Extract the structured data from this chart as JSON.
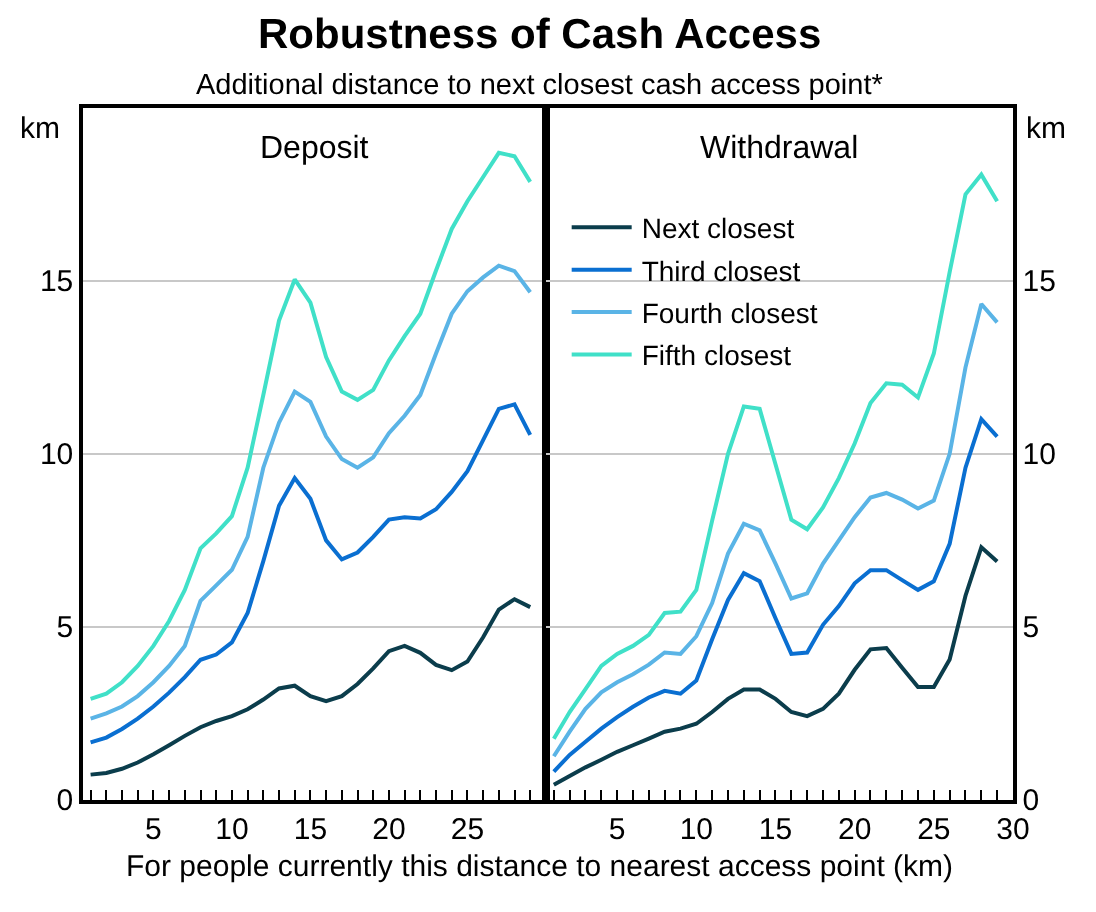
{
  "chart_data": [
    {
      "type": "line",
      "title": "Robustness of Cash Access",
      "subtitle": "Additional distance to next closest cash access point*",
      "xlabel": "For people currently this distance to nearest access point (km)",
      "ylabel": "km",
      "annotations": [
        "Deposit"
      ],
      "x": [
        1,
        2,
        3,
        4,
        5,
        6,
        7,
        8,
        9,
        10,
        11,
        12,
        13,
        14,
        15,
        16,
        17,
        18,
        19,
        20,
        21,
        22,
        23,
        24,
        25,
        26,
        27,
        28,
        29
      ],
      "xlim": [
        0.5,
        30
      ],
      "xticks": [
        {
          "value": 1,
          "label": null
        },
        {
          "value": 2,
          "label": null
        },
        {
          "value": 3,
          "label": null
        },
        {
          "value": 4,
          "label": null
        },
        5,
        {
          "value": 6,
          "label": null
        },
        {
          "value": 7,
          "label": null
        },
        {
          "value": 8,
          "label": null
        },
        {
          "value": 9,
          "label": null
        },
        10,
        {
          "value": 11,
          "label": null
        },
        {
          "value": 12,
          "label": null
        },
        {
          "value": 13,
          "label": null
        },
        {
          "value": 14,
          "label": null
        },
        15,
        {
          "value": 16,
          "label": null
        },
        {
          "value": 17,
          "label": null
        },
        {
          "value": 18,
          "label": null
        },
        {
          "value": 19,
          "label": null
        },
        20,
        {
          "value": 21,
          "label": null
        },
        {
          "value": 22,
          "label": null
        },
        {
          "value": 23,
          "label": null
        },
        {
          "value": 24,
          "label": null
        },
        25,
        {
          "value": 26,
          "label": null
        },
        {
          "value": 27,
          "label": null
        },
        {
          "value": 28,
          "label": null
        },
        {
          "value": 29,
          "label": null
        }
      ],
      "ylim": [
        0,
        20
      ],
      "yticks": [
        0,
        5,
        10,
        15
      ],
      "grid": "y",
      "series": [
        {
          "color": "#0b3d4c",
          "values": [
            0.73,
            0.78,
            0.9,
            1.08,
            1.32,
            1.58,
            1.85,
            2.1,
            2.28,
            2.42,
            2.62,
            2.9,
            3.22,
            3.3,
            3.0,
            2.85,
            3.0,
            3.35,
            3.8,
            4.3,
            4.45,
            4.25,
            3.9,
            3.75,
            4.0,
            4.7,
            5.5,
            5.8,
            5.57
          ]
        },
        {
          "color": "#0a6fd1",
          "values": [
            1.66,
            1.8,
            2.05,
            2.35,
            2.7,
            3.1,
            3.55,
            4.05,
            4.2,
            4.55,
            5.4,
            6.9,
            8.5,
            9.3,
            8.7,
            7.5,
            6.95,
            7.15,
            7.6,
            8.1,
            8.17,
            8.13,
            8.4,
            8.9,
            9.5,
            10.4,
            11.3,
            11.43,
            10.55
          ]
        },
        {
          "color": "#5ab4e6",
          "values": [
            2.35,
            2.5,
            2.7,
            3.0,
            3.4,
            3.87,
            4.45,
            5.75,
            6.2,
            6.65,
            7.6,
            9.6,
            10.9,
            11.8,
            11.5,
            10.5,
            9.85,
            9.6,
            9.9,
            10.6,
            11.1,
            11.7,
            12.9,
            14.05,
            14.7,
            15.1,
            15.44,
            15.28,
            14.67
          ]
        },
        {
          "color": "#40e0c8",
          "values": [
            2.92,
            3.07,
            3.4,
            3.87,
            4.45,
            5.17,
            6.07,
            7.27,
            7.7,
            8.2,
            9.6,
            11.7,
            13.85,
            15.04,
            14.37,
            12.8,
            11.8,
            11.56,
            11.85,
            12.7,
            13.4,
            14.05,
            15.3,
            16.5,
            17.3,
            18.0,
            18.7,
            18.6,
            17.86
          ]
        }
      ]
    },
    {
      "type": "line",
      "y2label": "km",
      "annotations": [
        "Withdrawal"
      ],
      "x": [
        1,
        2,
        3,
        4,
        5,
        6,
        7,
        8,
        9,
        10,
        11,
        12,
        13,
        14,
        15,
        16,
        17,
        18,
        19,
        20,
        21,
        22,
        23,
        24,
        25,
        26,
        27,
        28,
        29
      ],
      "xlim": [
        0.5,
        30
      ],
      "xticks": [
        {
          "value": 1,
          "label": null
        },
        {
          "value": 2,
          "label": null
        },
        {
          "value": 3,
          "label": null
        },
        {
          "value": 4,
          "label": null
        },
        5,
        {
          "value": 6,
          "label": null
        },
        {
          "value": 7,
          "label": null
        },
        {
          "value": 8,
          "label": null
        },
        {
          "value": 9,
          "label": null
        },
        10,
        {
          "value": 11,
          "label": null
        },
        {
          "value": 12,
          "label": null
        },
        {
          "value": 13,
          "label": null
        },
        {
          "value": 14,
          "label": null
        },
        15,
        {
          "value": 16,
          "label": null
        },
        {
          "value": 17,
          "label": null
        },
        {
          "value": 18,
          "label": null
        },
        {
          "value": 19,
          "label": null
        },
        20,
        {
          "value": 21,
          "label": null
        },
        {
          "value": 22,
          "label": null
        },
        {
          "value": 23,
          "label": null
        },
        {
          "value": 24,
          "label": null
        },
        25,
        {
          "value": 26,
          "label": null
        },
        {
          "value": 27,
          "label": null
        },
        {
          "value": 28,
          "label": null
        },
        {
          "value": 29,
          "label": null
        },
        30
      ],
      "y2lim": [
        0,
        20
      ],
      "y2ticks": [
        0,
        5,
        10,
        15
      ],
      "grid": "y",
      "legend": "top left",
      "series": [
        {
          "name": "Next closest",
          "color": "#0b3d4c",
          "axis": "y2",
          "values": [
            0.44,
            0.69,
            0.94,
            1.16,
            1.39,
            1.58,
            1.77,
            1.97,
            2.06,
            2.2,
            2.54,
            2.92,
            3.19,
            3.19,
            2.92,
            2.54,
            2.42,
            2.63,
            3.07,
            3.76,
            4.35,
            4.39,
            3.82,
            3.26,
            3.26,
            4.06,
            5.9,
            7.3,
            6.89
          ]
        },
        {
          "name": "Third closest",
          "color": "#0a6fd1",
          "axis": "y2",
          "values": [
            0.82,
            1.3,
            1.68,
            2.06,
            2.39,
            2.69,
            2.96,
            3.15,
            3.07,
            3.45,
            4.64,
            5.78,
            6.55,
            6.32,
            5.25,
            4.22,
            4.26,
            5.06,
            5.6,
            6.26,
            6.64,
            6.64,
            6.35,
            6.07,
            6.32,
            7.4,
            9.6,
            11.0,
            10.5
          ]
        },
        {
          "name": "Fourth closest",
          "color": "#5ab4e6",
          "axis": "y2",
          "values": [
            1.26,
            1.97,
            2.63,
            3.11,
            3.4,
            3.63,
            3.91,
            4.26,
            4.22,
            4.73,
            5.69,
            7.12,
            7.98,
            7.79,
            6.83,
            5.82,
            5.97,
            6.83,
            7.5,
            8.17,
            8.74,
            8.87,
            8.68,
            8.42,
            8.65,
            10.0,
            12.5,
            14.33,
            13.8
          ]
        },
        {
          "name": "Fifth closest",
          "color": "#40e0c8",
          "axis": "y2",
          "values": [
            1.77,
            2.54,
            3.2,
            3.87,
            4.22,
            4.45,
            4.77,
            5.4,
            5.44,
            6.07,
            8.07,
            10.0,
            11.37,
            11.3,
            9.7,
            8.1,
            7.82,
            8.45,
            9.3,
            10.3,
            11.47,
            12.04,
            12.0,
            11.63,
            12.9,
            15.25,
            17.5,
            18.07,
            17.3
          ]
        }
      ]
    }
  ]
}
